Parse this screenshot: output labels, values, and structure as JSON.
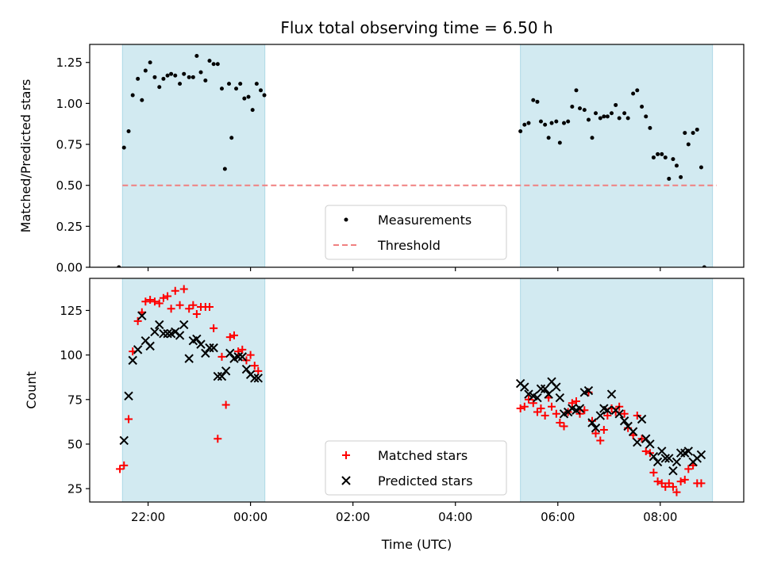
{
  "title": "Flux total observing time = 6.50 h",
  "colors": {
    "span": "#add8e6",
    "measurement": "#000000",
    "threshold": "#f08080",
    "matched": "#ff0000",
    "predicted": "#000000"
  },
  "x_axis": {
    "label": "Time (UTC)",
    "unit": "hours relative to 00:00 UTC",
    "range": [
      -3.14,
      9.63
    ],
    "ticks": [
      {
        "value": -2,
        "label": "22:00"
      },
      {
        "value": 0,
        "label": "00:00"
      },
      {
        "value": 2,
        "label": "02:00"
      },
      {
        "value": 4,
        "label": "04:00"
      },
      {
        "value": 6,
        "label": "06:00"
      },
      {
        "value": 8,
        "label": "08:00"
      }
    ]
  },
  "chart_data": [
    {
      "type": "scatter",
      "ylabel": "Matched/Predicted stars",
      "ylim": [
        0,
        1.36
      ],
      "yticks": [
        "0.00",
        "0.25",
        "0.50",
        "0.75",
        "1.00",
        "1.25"
      ],
      "shaded_spans": [
        [
          -2.5,
          0.28
        ],
        [
          5.27,
          9.02
        ]
      ],
      "threshold": {
        "name": "Threshold",
        "value": 0.5,
        "x_range": [
          -2.5,
          9.1
        ]
      },
      "legend": {
        "placement": "lower-center",
        "entries": [
          "Measurements",
          "Threshold"
        ]
      },
      "series": [
        {
          "name": "Measurements",
          "points": [
            [
              -2.57,
              0.0
            ],
            [
              -2.47,
              0.73
            ],
            [
              -2.38,
              0.83
            ],
            [
              -2.3,
              1.05
            ],
            [
              -2.2,
              1.15
            ],
            [
              -2.12,
              1.02
            ],
            [
              -2.05,
              1.2
            ],
            [
              -1.96,
              1.25
            ],
            [
              -1.87,
              1.16
            ],
            [
              -1.78,
              1.1
            ],
            [
              -1.7,
              1.15
            ],
            [
              -1.62,
              1.17
            ],
            [
              -1.55,
              1.18
            ],
            [
              -1.47,
              1.17
            ],
            [
              -1.38,
              1.12
            ],
            [
              -1.3,
              1.18
            ],
            [
              -1.2,
              1.16
            ],
            [
              -1.12,
              1.16
            ],
            [
              -1.05,
              1.29
            ],
            [
              -0.97,
              1.19
            ],
            [
              -0.88,
              1.14
            ],
            [
              -0.8,
              1.26
            ],
            [
              -0.72,
              1.24
            ],
            [
              -0.64,
              1.24
            ],
            [
              -0.56,
              1.09
            ],
            [
              -0.5,
              0.6
            ],
            [
              -0.42,
              1.12
            ],
            [
              -0.37,
              0.79
            ],
            [
              -0.28,
              1.09
            ],
            [
              -0.2,
              1.12
            ],
            [
              -0.12,
              1.03
            ],
            [
              -0.04,
              1.04
            ],
            [
              0.04,
              0.96
            ],
            [
              0.12,
              1.12
            ],
            [
              0.2,
              1.08
            ],
            [
              0.27,
              1.05
            ],
            [
              5.27,
              0.83
            ],
            [
              5.35,
              0.87
            ],
            [
              5.43,
              0.88
            ],
            [
              5.52,
              1.02
            ],
            [
              5.6,
              1.01
            ],
            [
              5.67,
              0.89
            ],
            [
              5.75,
              0.87
            ],
            [
              5.82,
              0.79
            ],
            [
              5.88,
              0.88
            ],
            [
              5.97,
              0.89
            ],
            [
              6.04,
              0.76
            ],
            [
              6.12,
              0.88
            ],
            [
              6.2,
              0.89
            ],
            [
              6.28,
              0.98
            ],
            [
              6.36,
              1.08
            ],
            [
              6.43,
              0.97
            ],
            [
              6.52,
              0.96
            ],
            [
              6.6,
              0.9
            ],
            [
              6.67,
              0.79
            ],
            [
              6.74,
              0.94
            ],
            [
              6.83,
              0.91
            ],
            [
              6.9,
              0.92
            ],
            [
              6.97,
              0.92
            ],
            [
              7.05,
              0.94
            ],
            [
              7.13,
              0.99
            ],
            [
              7.2,
              0.91
            ],
            [
              7.3,
              0.94
            ],
            [
              7.37,
              0.91
            ],
            [
              7.47,
              1.06
            ],
            [
              7.55,
              1.08
            ],
            [
              7.64,
              0.98
            ],
            [
              7.72,
              0.92
            ],
            [
              7.8,
              0.85
            ],
            [
              7.87,
              0.67
            ],
            [
              7.95,
              0.69
            ],
            [
              8.03,
              0.69
            ],
            [
              8.1,
              0.67
            ],
            [
              8.17,
              0.54
            ],
            [
              8.25,
              0.66
            ],
            [
              8.32,
              0.62
            ],
            [
              8.4,
              0.55
            ],
            [
              8.48,
              0.82
            ],
            [
              8.55,
              0.75
            ],
            [
              8.64,
              0.82
            ],
            [
              8.72,
              0.84
            ],
            [
              8.8,
              0.61
            ],
            [
              8.86,
              0.0
            ]
          ]
        }
      ]
    },
    {
      "type": "scatter",
      "ylabel": "Count",
      "ylim": [
        17.5,
        143
      ],
      "yticks": [
        "25",
        "50",
        "75",
        "100",
        "125"
      ],
      "shaded_spans": [
        [
          -2.5,
          0.28
        ],
        [
          5.27,
          9.02
        ]
      ],
      "legend": {
        "placement": "lower-center",
        "entries": [
          "Matched stars",
          "Predicted stars"
        ]
      },
      "series": [
        {
          "name": "Matched stars",
          "marker": "plus",
          "points": [
            [
              -2.55,
              36
            ],
            [
              -2.47,
              38
            ],
            [
              -2.38,
              64
            ],
            [
              -2.3,
              102
            ],
            [
              -2.2,
              119
            ],
            [
              -2.12,
              124
            ],
            [
              -2.05,
              130
            ],
            [
              -1.96,
              131
            ],
            [
              -1.87,
              130
            ],
            [
              -1.78,
              129
            ],
            [
              -1.7,
              132
            ],
            [
              -1.62,
              133
            ],
            [
              -1.55,
              126
            ],
            [
              -1.47,
              136
            ],
            [
              -1.38,
              128
            ],
            [
              -1.3,
              137
            ],
            [
              -1.2,
              126
            ],
            [
              -1.12,
              128
            ],
            [
              -1.05,
              123
            ],
            [
              -0.97,
              127
            ],
            [
              -0.88,
              127
            ],
            [
              -0.8,
              127
            ],
            [
              -0.72,
              115
            ],
            [
              -0.64,
              53
            ],
            [
              -0.56,
              99
            ],
            [
              -0.48,
              72
            ],
            [
              -0.4,
              110
            ],
            [
              -0.32,
              111
            ],
            [
              -0.24,
              102
            ],
            [
              -0.16,
              103
            ],
            [
              -0.08,
              97
            ],
            [
              0.0,
              100
            ],
            [
              0.08,
              94
            ],
            [
              0.15,
              91
            ],
            [
              5.27,
              70
            ],
            [
              5.35,
              71
            ],
            [
              5.43,
              75
            ],
            [
              5.52,
              73
            ],
            [
              5.6,
              68
            ],
            [
              5.67,
              70
            ],
            [
              5.75,
              66
            ],
            [
              5.82,
              76
            ],
            [
              5.88,
              71
            ],
            [
              5.97,
              67
            ],
            [
              6.04,
              62
            ],
            [
              6.12,
              60
            ],
            [
              6.2,
              68
            ],
            [
              6.28,
              73
            ],
            [
              6.36,
              74
            ],
            [
              6.43,
              67
            ],
            [
              6.52,
              69
            ],
            [
              6.6,
              79
            ],
            [
              6.67,
              63
            ],
            [
              6.74,
              56
            ],
            [
              6.83,
              52
            ],
            [
              6.9,
              58
            ],
            [
              6.97,
              66
            ],
            [
              7.05,
              70
            ],
            [
              7.13,
              68
            ],
            [
              7.2,
              71
            ],
            [
              7.3,
              67
            ],
            [
              7.37,
              59
            ],
            [
              7.47,
              55
            ],
            [
              7.55,
              66
            ],
            [
              7.64,
              53
            ],
            [
              7.72,
              46
            ],
            [
              7.8,
              45
            ],
            [
              7.87,
              34
            ],
            [
              7.95,
              29
            ],
            [
              8.03,
              28
            ],
            [
              8.1,
              26
            ],
            [
              8.17,
              28
            ],
            [
              8.25,
              26
            ],
            [
              8.32,
              23
            ],
            [
              8.4,
              29
            ],
            [
              8.48,
              30
            ],
            [
              8.55,
              36
            ],
            [
              8.64,
              38
            ],
            [
              8.72,
              28
            ],
            [
              8.8,
              28
            ]
          ]
        },
        {
          "name": "Predicted stars",
          "marker": "x",
          "points": [
            [
              -2.47,
              52
            ],
            [
              -2.38,
              77
            ],
            [
              -2.3,
              97
            ],
            [
              -2.2,
              103
            ],
            [
              -2.12,
              122
            ],
            [
              -2.05,
              108
            ],
            [
              -1.96,
              105
            ],
            [
              -1.87,
              113
            ],
            [
              -1.78,
              117
            ],
            [
              -1.7,
              112
            ],
            [
              -1.62,
              112
            ],
            [
              -1.55,
              112
            ],
            [
              -1.47,
              113
            ],
            [
              -1.38,
              111
            ],
            [
              -1.3,
              117
            ],
            [
              -1.2,
              98
            ],
            [
              -1.12,
              108
            ],
            [
              -1.05,
              109
            ],
            [
              -0.97,
              106
            ],
            [
              -0.88,
              101
            ],
            [
              -0.8,
              104
            ],
            [
              -0.72,
              104
            ],
            [
              -0.64,
              88
            ],
            [
              -0.56,
              88
            ],
            [
              -0.48,
              91
            ],
            [
              -0.4,
              101
            ],
            [
              -0.32,
              98
            ],
            [
              -0.24,
              99
            ],
            [
              -0.16,
              99
            ],
            [
              -0.08,
              92
            ],
            [
              0.0,
              89
            ],
            [
              0.08,
              87
            ],
            [
              0.15,
              87
            ],
            [
              5.27,
              84
            ],
            [
              5.35,
              82
            ],
            [
              5.43,
              78
            ],
            [
              5.52,
              77
            ],
            [
              5.6,
              76
            ],
            [
              5.67,
              81
            ],
            [
              5.75,
              81
            ],
            [
              5.82,
              78
            ],
            [
              5.88,
              85
            ],
            [
              5.97,
              82
            ],
            [
              6.04,
              76
            ],
            [
              6.12,
              67
            ],
            [
              6.2,
              68
            ],
            [
              6.28,
              70
            ],
            [
              6.36,
              69
            ],
            [
              6.43,
              70
            ],
            [
              6.52,
              79
            ],
            [
              6.6,
              80
            ],
            [
              6.67,
              62
            ],
            [
              6.74,
              59
            ],
            [
              6.83,
              66
            ],
            [
              6.9,
              70
            ],
            [
              6.97,
              69
            ],
            [
              7.05,
              78
            ],
            [
              7.13,
              69
            ],
            [
              7.2,
              67
            ],
            [
              7.3,
              63
            ],
            [
              7.37,
              60
            ],
            [
              7.47,
              57
            ],
            [
              7.55,
              51
            ],
            [
              7.64,
              64
            ],
            [
              7.72,
              53
            ],
            [
              7.8,
              50
            ],
            [
              7.87,
              43
            ],
            [
              7.95,
              40
            ],
            [
              8.03,
              46
            ],
            [
              8.1,
              42
            ],
            [
              8.17,
              42
            ],
            [
              8.25,
              35
            ],
            [
              8.32,
              40
            ],
            [
              8.4,
              45
            ],
            [
              8.48,
              45
            ],
            [
              8.55,
              46
            ],
            [
              8.64,
              40
            ],
            [
              8.72,
              42
            ],
            [
              8.8,
              44
            ]
          ]
        }
      ]
    }
  ]
}
